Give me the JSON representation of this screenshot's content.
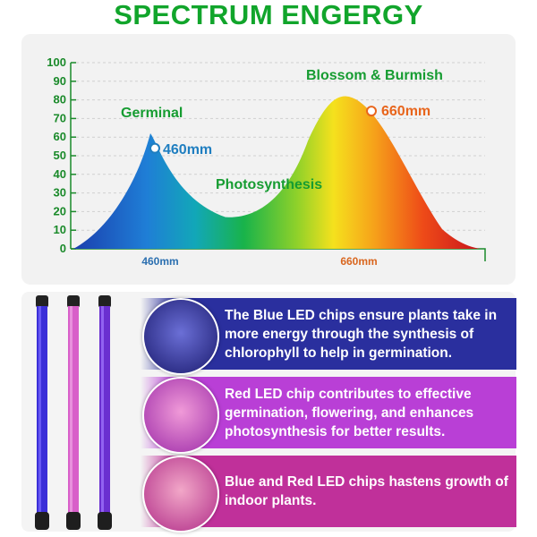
{
  "title": "SPECTRUM ENGERGY",
  "chart_data": {
    "type": "area",
    "y_ticks": [
      "100",
      "90",
      "80",
      "70",
      "60",
      "50",
      "40",
      "30",
      "20",
      "10",
      "0"
    ],
    "ylim": [
      0,
      100
    ],
    "x_ticks": [
      "460mm",
      "660mm"
    ],
    "peaks": [
      {
        "label": "460mm",
        "value": 62
      },
      {
        "label": "660mm",
        "value": 82
      }
    ],
    "valley_value": 17,
    "annotations": {
      "germinal": "Germinal",
      "blossom": "Blossom & Burmish",
      "photosynthesis": "Photosynthesis",
      "peak_blue": "460mm",
      "peak_red": "660mm"
    },
    "grid": true
  },
  "bands": [
    {
      "text": "The Blue LED chips ensure plants take in more energy through the synthesis of chlorophyll to help in germination.",
      "color": "#2a2f9e"
    },
    {
      "text": "Red LED chip contributes to effective germination, flowering, and enhances photosynthesis for better results.",
      "color": "#b93fd6"
    },
    {
      "text": "Blue and Red LED chips hastens growth of indoor plants.",
      "color": "#c0309a"
    }
  ]
}
